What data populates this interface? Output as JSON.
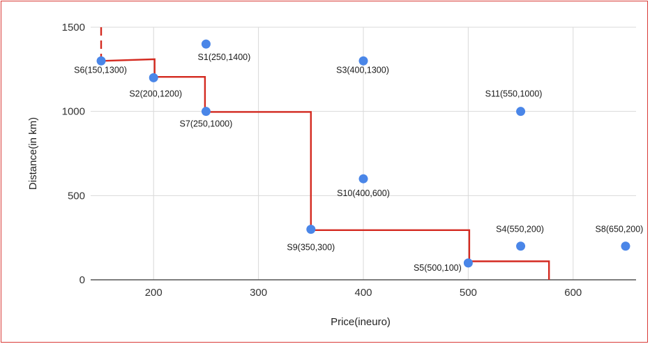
{
  "chart_data": {
    "type": "scatter",
    "title": "",
    "xlabel": "Price(ineuro)",
    "ylabel": "Distance(in km)",
    "xlim": [
      140,
      660
    ],
    "ylim": [
      0,
      1500
    ],
    "x_ticks": [
      "200",
      "300",
      "400",
      "500",
      "600"
    ],
    "y_ticks": [
      "0",
      "500",
      "1000",
      "1500"
    ],
    "grid": true,
    "point_color": "#4a86e8",
    "line_color": "#d42a20",
    "frame_color": "#d93a36",
    "points": [
      {
        "x": 150,
        "y": 1300,
        "label": "S6(150,1300)"
      },
      {
        "x": 200,
        "y": 1200,
        "label": "S2(200,1200)"
      },
      {
        "x": 250,
        "y": 1400,
        "label": "S1(250,1400)"
      },
      {
        "x": 250,
        "y": 1000,
        "label": "S7(250,1000)"
      },
      {
        "x": 400,
        "y": 1300,
        "label": "S3(400,1300)"
      },
      {
        "x": 550,
        "y": 1000,
        "label": "S11(550,1000)"
      },
      {
        "x": 400,
        "y": 600,
        "label": "S10(400,600)"
      },
      {
        "x": 350,
        "y": 300,
        "label": "S9(350,300)"
      },
      {
        "x": 550,
        "y": 200,
        "label": "S4(550,200)"
      },
      {
        "x": 650,
        "y": 200,
        "label": "S8(650,200)"
      },
      {
        "x": 500,
        "y": 100,
        "label": "S5(500,100)"
      }
    ],
    "step_line": [
      [
        150,
        1300
      ],
      [
        201,
        1310
      ],
      [
        201,
        1205
      ],
      [
        249,
        1205
      ],
      [
        249,
        997
      ],
      [
        350,
        997
      ],
      [
        350,
        295
      ],
      [
        501,
        295
      ],
      [
        501,
        110
      ],
      [
        577,
        110
      ],
      [
        577,
        0
      ]
    ],
    "dashed_line": [
      [
        150,
        1500
      ],
      [
        150,
        1300
      ]
    ]
  }
}
